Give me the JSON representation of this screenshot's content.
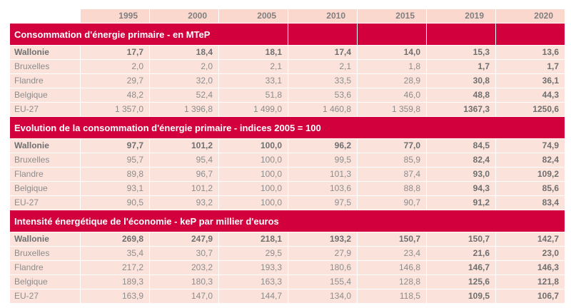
{
  "years": [
    "1995",
    "2000",
    "2005",
    "2010",
    "2015",
    "2019",
    "2020"
  ],
  "sections": [
    {
      "title": "Consommation d'énergie primaire - en MTeP",
      "rows": [
        {
          "region": "Wallonie",
          "values": [
            "17,7",
            "18,4",
            "18,1",
            "17,4",
            "14,0",
            "15,3",
            "13,6"
          ]
        },
        {
          "region": "Bruxelles",
          "values": [
            "2,0",
            "2,0",
            "2,1",
            "2,1",
            "1,8",
            "1,7",
            "1,7"
          ]
        },
        {
          "region": "Flandre",
          "values": [
            "29,7",
            "32,0",
            "33,1",
            "33,5",
            "28,9",
            "30,8",
            "36,1"
          ]
        },
        {
          "region": "Belgique",
          "values": [
            "48,2",
            "52,4",
            "51,8",
            "53,6",
            "46,0",
            "48,8",
            "44,3"
          ]
        },
        {
          "region": "EU-27",
          "values": [
            "1 357,0",
            "1 396,8",
            "1 499,0",
            "1 460,8",
            "1 359,8",
            "1367,3",
            "1250,6"
          ]
        }
      ]
    },
    {
      "title": "Evolution de la consommation d'énergie primaire - indices 2005 = 100",
      "rows": [
        {
          "region": "Wallonie",
          "values": [
            "97,7",
            "101,2",
            "100,0",
            "96,2",
            "77,0",
            "84,5",
            "74,9"
          ]
        },
        {
          "region": "Bruxelles",
          "values": [
            "95,7",
            "95,4",
            "100,0",
            "99,5",
            "85,9",
            "82,4",
            "82,4"
          ]
        },
        {
          "region": "Flandre",
          "values": [
            "89,8",
            "96,7",
            "100,0",
            "101,3",
            "87,4",
            "93,0",
            "109,2"
          ]
        },
        {
          "region": "Belgique",
          "values": [
            "93,1",
            "101,2",
            "100,0",
            "103,6",
            "88,8",
            "94,3",
            "85,6"
          ]
        },
        {
          "region": "EU-27",
          "values": [
            "90,5",
            "93,2",
            "100,0",
            "97,5",
            "90,7",
            "91,2",
            "83,4"
          ]
        }
      ]
    },
    {
      "title": "Intensité énergétique de l'économie - keP par millier d'euros",
      "rows": [
        {
          "region": "Wallonie",
          "values": [
            "269,8",
            "247,9",
            "218,1",
            "193,2",
            "150,7",
            "150,7",
            "142,7"
          ]
        },
        {
          "region": "Bruxelles",
          "values": [
            "35,4",
            "30,7",
            "29,5",
            "27,9",
            "23,4",
            "21,6",
            "23,0"
          ]
        },
        {
          "region": "Flandre",
          "values": [
            "217,2",
            "203,2",
            "193,3",
            "180,6",
            "146,8",
            "146,7",
            "146,3"
          ]
        },
        {
          "region": "Belgique",
          "values": [
            "189,3",
            "180,3",
            "163,3",
            "155,4",
            "128,8",
            "125,6",
            "121,8"
          ]
        },
        {
          "region": "EU-27",
          "values": [
            "163,9",
            "147,0",
            "144,7",
            "134,0",
            "118,5",
            "109,5",
            "106,7"
          ]
        }
      ]
    }
  ],
  "colors": {
    "section_band": "#d2003c",
    "header_fill": "#fbd8ce",
    "cell_fill": "#fbe3dc",
    "text": "#8c8c8c"
  }
}
